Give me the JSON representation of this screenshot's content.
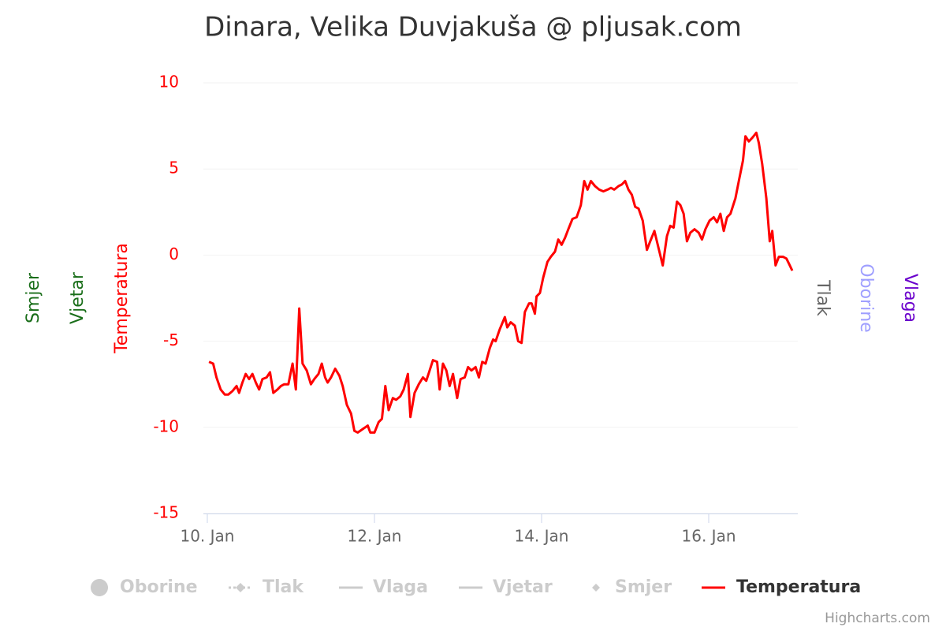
{
  "chart_data": {
    "type": "line",
    "title": "Dinara, Velika Duvjakuša @ pljusak.com",
    "credits": "Highcharts.com",
    "xlim": [
      9.953,
      17.066
    ],
    "xticks": [
      {
        "value": 10,
        "label": "10. Jan"
      },
      {
        "value": 12,
        "label": "12. Jan"
      },
      {
        "value": 14,
        "label": "14. Jan"
      },
      {
        "value": 16,
        "label": "16. Jan"
      }
    ],
    "ylim": [
      -15,
      10
    ],
    "yticks": [
      -15,
      -10,
      -5,
      0,
      5,
      10
    ],
    "grid": true,
    "axis_titles": [
      {
        "text": "Smjer",
        "color": "#1a6e1a",
        "side": "left"
      },
      {
        "text": "Vjetar",
        "color": "#1a6e1a",
        "side": "left"
      },
      {
        "text": "Temperatura",
        "color": "#ff0000",
        "side": "left"
      },
      {
        "text": "Tlak",
        "color": "#666666",
        "side": "right"
      },
      {
        "text": "Oborine",
        "color": "#9f9fff",
        "side": "right"
      },
      {
        "text": "Vlaga",
        "color": "#6a00cc",
        "side": "right"
      }
    ],
    "legend": [
      {
        "name": "Oborine",
        "symbol": "circle",
        "visible": false
      },
      {
        "name": "Tlak",
        "symbol": "dashed-diamond",
        "visible": false
      },
      {
        "name": "Vlaga",
        "symbol": "line",
        "visible": false
      },
      {
        "name": "Vjetar",
        "symbol": "line",
        "visible": false
      },
      {
        "name": "Smjer",
        "symbol": "diamond",
        "visible": false
      }
    ],
    "x": [
      10.02,
      10.07,
      10.11,
      10.16,
      10.21,
      10.25,
      10.3,
      10.35,
      10.38,
      10.42,
      10.46,
      10.5,
      10.54,
      10.58,
      10.62,
      10.66,
      10.71,
      10.75,
      10.79,
      10.84,
      10.88,
      10.92,
      10.97,
      11.02,
      11.06,
      11.1,
      11.14,
      11.19,
      11.24,
      11.28,
      11.33,
      11.37,
      11.41,
      11.44,
      11.48,
      11.53,
      11.58,
      11.62,
      11.67,
      11.72,
      11.76,
      11.8,
      11.86,
      11.92,
      11.95,
      12.0,
      12.05,
      12.09,
      12.13,
      12.17,
      12.22,
      12.26,
      12.31,
      12.35,
      12.4,
      12.43,
      12.48,
      12.53,
      12.58,
      12.62,
      12.66,
      12.7,
      12.75,
      12.78,
      12.82,
      12.86,
      12.9,
      12.94,
      12.99,
      13.03,
      13.08,
      13.12,
      13.16,
      13.21,
      13.25,
      13.29,
      13.33,
      13.38,
      13.42,
      13.45,
      13.5,
      13.56,
      13.59,
      13.63,
      13.68,
      13.72,
      13.76,
      13.8,
      13.85,
      13.88,
      13.92,
      13.94,
      13.98,
      14.02,
      14.07,
      14.11,
      14.16,
      14.2,
      14.24,
      14.28,
      14.32,
      14.37,
      14.42,
      14.47,
      14.51,
      14.55,
      14.59,
      14.64,
      14.69,
      14.74,
      14.79,
      14.83,
      14.87,
      14.92,
      14.96,
      15.0,
      15.04,
      15.08,
      15.12,
      15.16,
      15.21,
      15.26,
      15.3,
      15.35,
      15.4,
      15.45,
      15.5,
      15.54,
      15.58,
      15.62,
      15.66,
      15.7,
      15.74,
      15.78,
      15.83,
      15.88,
      15.92,
      15.96,
      16.01,
      16.06,
      16.1,
      16.14,
      16.18,
      16.22,
      16.26,
      16.32,
      16.36,
      16.41,
      16.44,
      16.48,
      16.52,
      16.57,
      16.6,
      16.64,
      16.69,
      16.73,
      16.76,
      16.8,
      16.84,
      16.89,
      16.93,
      16.96,
      17.0
    ],
    "series": [
      {
        "name": "Temperatura",
        "color": "#ff0000",
        "values": [
          -6.2,
          -6.3,
          -7.1,
          -7.8,
          -8.1,
          -8.1,
          -7.9,
          -7.6,
          -8.0,
          -7.4,
          -6.9,
          -7.2,
          -6.9,
          -7.4,
          -7.8,
          -7.2,
          -7.1,
          -6.8,
          -8.0,
          -7.8,
          -7.6,
          -7.5,
          -7.5,
          -6.3,
          -7.8,
          -3.1,
          -6.3,
          -6.7,
          -7.5,
          -7.2,
          -6.9,
          -6.3,
          -7.1,
          -7.4,
          -7.1,
          -6.6,
          -7.0,
          -7.6,
          -8.7,
          -9.2,
          -10.2,
          -10.3,
          -10.1,
          -9.9,
          -10.3,
          -10.3,
          -9.7,
          -9.5,
          -7.6,
          -9.0,
          -8.3,
          -8.4,
          -8.2,
          -7.8,
          -6.9,
          -9.4,
          -8.0,
          -7.5,
          -7.1,
          -7.3,
          -6.7,
          -6.1,
          -6.2,
          -7.8,
          -6.3,
          -6.7,
          -7.6,
          -6.9,
          -8.3,
          -7.2,
          -7.1,
          -6.5,
          -6.7,
          -6.5,
          -7.1,
          -6.2,
          -6.3,
          -5.4,
          -4.9,
          -5.0,
          -4.3,
          -3.6,
          -4.2,
          -3.9,
          -4.1,
          -5.0,
          -5.1,
          -3.3,
          -2.8,
          -2.8,
          -3.4,
          -2.4,
          -2.2,
          -1.3,
          -0.4,
          -0.1,
          0.2,
          0.9,
          0.6,
          1.0,
          1.5,
          2.1,
          2.2,
          2.9,
          4.3,
          3.8,
          4.3,
          4.0,
          3.8,
          3.7,
          3.8,
          3.9,
          3.8,
          4.0,
          4.1,
          4.3,
          3.8,
          3.5,
          2.8,
          2.7,
          2.0,
          0.3,
          0.8,
          1.4,
          0.4,
          -0.6,
          1.1,
          1.7,
          1.6,
          3.1,
          2.9,
          2.4,
          0.8,
          1.3,
          1.5,
          1.3,
          0.9,
          1.5,
          2.0,
          2.2,
          1.9,
          2.4,
          1.4,
          2.2,
          2.4,
          3.3,
          4.3,
          5.5,
          6.9,
          6.6,
          6.8,
          7.1,
          6.5,
          5.3,
          3.3,
          0.8,
          1.4,
          -0.6,
          -0.1,
          -0.1,
          -0.2,
          -0.5,
          -0.9
        ]
      }
    ]
  }
}
